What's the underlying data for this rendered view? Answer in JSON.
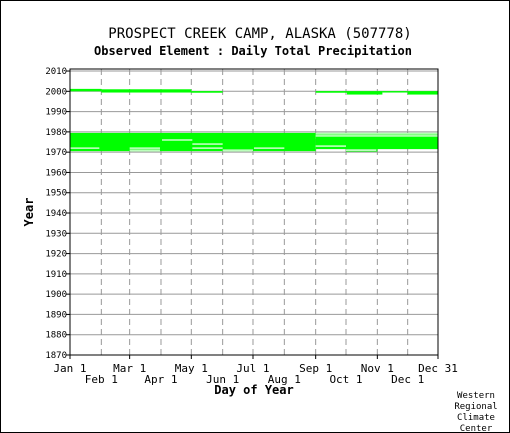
{
  "chart_data": {
    "type": "scatter",
    "title": "PROSPECT CREEK CAMP, ALASKA   (507778)",
    "subtitle": "Observed Element : Daily Total Precipitation",
    "xlabel": "Day of Year",
    "ylabel": "Year",
    "ylim": [
      1870,
      2011
    ],
    "xlim": [
      1,
      365
    ],
    "yticks": [
      1870,
      1880,
      1890,
      1900,
      1910,
      1920,
      1930,
      1940,
      1950,
      1960,
      1970,
      1980,
      1990,
      2000,
      2010
    ],
    "xticks_upper": [
      {
        "label": "Jan 1",
        "day": 1
      },
      {
        "label": "Mar 1",
        "day": 60
      },
      {
        "label": "May 1",
        "day": 121
      },
      {
        "label": "Jul 1",
        "day": 182
      },
      {
        "label": "Sep 1",
        "day": 244
      },
      {
        "label": "Nov 1",
        "day": 305
      },
      {
        "label": "Dec 31",
        "day": 365
      }
    ],
    "xticks_lower": [
      {
        "label": "Feb 1",
        "day": 32
      },
      {
        "label": "Apr 1",
        "day": 91
      },
      {
        "label": "Jun 1",
        "day": 152
      },
      {
        "label": "Aug 1",
        "day": 213
      },
      {
        "label": "Oct 1",
        "day": 274
      },
      {
        "label": "Dec 1",
        "day": 335
      }
    ],
    "grid": true,
    "color": "#00ff00",
    "observed_periods": [
      {
        "y_from": 1970.5,
        "y_to": 1979.5,
        "day_from": 1,
        "day_to": 244
      },
      {
        "y_from": 1971.5,
        "y_to": 1979.5,
        "day_from": 244,
        "day_to": 365
      },
      {
        "y_from": 1970.3,
        "y_to": 1971.5,
        "day_from": 274,
        "day_to": 305
      },
      {
        "y_from": 2000.0,
        "y_to": 2001.2,
        "day_from": 1,
        "day_to": 32
      },
      {
        "y_from": 1999.4,
        "y_to": 2001.0,
        "day_from": 32,
        "day_to": 121
      },
      {
        "y_from": 1999.3,
        "y_to": 2000.1,
        "day_from": 121,
        "day_to": 152
      },
      {
        "y_from": 1999.3,
        "y_to": 2000.1,
        "day_from": 244,
        "day_to": 275
      },
      {
        "y_from": 1998.4,
        "y_to": 2000.1,
        "day_from": 275,
        "day_to": 310
      },
      {
        "y_from": 1999.4,
        "y_to": 2000.1,
        "day_from": 310,
        "day_to": 335
      },
      {
        "y_from": 1998.4,
        "y_to": 2000.1,
        "day_from": 335,
        "day_to": 365
      }
    ],
    "missing_gaps": [
      {
        "year": 1972,
        "day_from": 1,
        "day_to": 30
      },
      {
        "year": 1972,
        "day_from": 60,
        "day_to": 90
      },
      {
        "year": 1971,
        "day_from": 60,
        "day_to": 90
      },
      {
        "year": 1976,
        "day_from": 92,
        "day_to": 122
      },
      {
        "year": 1974,
        "day_from": 122,
        "day_to": 152
      },
      {
        "year": 1972,
        "day_from": 122,
        "day_to": 152
      },
      {
        "year": 1971,
        "day_from": 152,
        "day_to": 182
      },
      {
        "year": 1972,
        "day_from": 183,
        "day_to": 213
      },
      {
        "year": 1973,
        "day_from": 244,
        "day_to": 274
      },
      {
        "year": 1971,
        "day_from": 274,
        "day_to": 304
      },
      {
        "year": 1979,
        "day_from": 244,
        "day_to": 365
      },
      {
        "year": 1978,
        "day_from": 244,
        "day_to": 365
      }
    ]
  },
  "credit": [
    "Western",
    "Regional",
    "Climate",
    "Center"
  ]
}
